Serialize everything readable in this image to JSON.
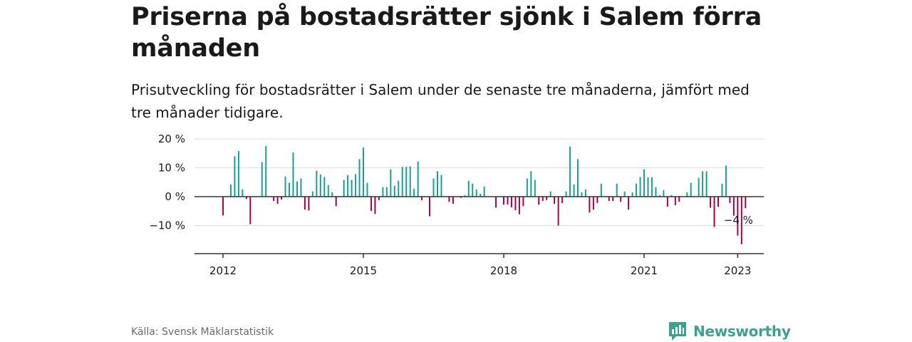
{
  "header": {
    "title": "Priserna på bostadsrätter sjönk i Salem förra månaden",
    "subtitle": "Prisutveckling för bostadsrätter i Salem under de senaste tre månaderna, jämfört med tre månader tidigare."
  },
  "footer": {
    "source": "Källa: Svensk Mäklarstatistik",
    "brand": "Newsworthy"
  },
  "colors": {
    "positive": "#1a9e96",
    "negative": "#a3004f",
    "brand": "#3e9f93",
    "grid": "#d9d9d9",
    "axis": "#333333"
  },
  "chart_data": {
    "type": "bar",
    "y_ticks": [
      {
        "value": 20,
        "label": "20 %"
      },
      {
        "value": 10,
        "label": "10 %"
      },
      {
        "value": 0,
        "label": "0 %"
      },
      {
        "value": -10,
        "label": "−10 %"
      }
    ],
    "x_ticks": [
      {
        "value": 2012,
        "label": "2012"
      },
      {
        "value": 2015,
        "label": "2015"
      },
      {
        "value": 2018,
        "label": "2018"
      },
      {
        "value": 2021,
        "label": "2021"
      },
      {
        "value": 2023,
        "label": "2023"
      }
    ],
    "ylim": [
      -19,
      20
    ],
    "xlim": [
      2011.4,
      2023.6
    ],
    "grid": true,
    "annotation": {
      "label": "−4 %",
      "x": 2023.0,
      "y": -4
    },
    "series": [
      {
        "start": 2012.0,
        "values": [
          -6.5,
          0,
          4.2,
          14,
          15.8,
          2.5,
          -0.8,
          -9.5,
          0,
          0,
          12,
          17.5,
          0,
          -1.5,
          -2.5,
          -1,
          7,
          4.8,
          15.3,
          5.3,
          6.3,
          -4.5,
          -4.8,
          1.8,
          9,
          7.7,
          6.8,
          4,
          1.5,
          -3.3,
          0,
          5.8,
          7.5,
          5.8,
          7.8,
          13,
          17,
          4.8,
          -5,
          -6,
          -1.2,
          3.3,
          3.3,
          9.5,
          3.8,
          5.5,
          10.3,
          10.3,
          10.5,
          2.7,
          12.2,
          -1.2,
          0,
          -6.8,
          6.3,
          8.8,
          7.5,
          0,
          -1.8,
          -2.5,
          0,
          -0.4,
          0.5,
          5.5,
          4.5,
          2.5,
          1,
          3.5,
          0,
          0,
          -3.8,
          0,
          -2.8,
          -2.7,
          -3.7,
          -4.7,
          -6.1,
          -3.3,
          6.3,
          8.8,
          5.8,
          -2.8,
          -1.5,
          -1.2,
          1.8,
          -2.5,
          -10,
          -2.2,
          1.8,
          17.3,
          4.2,
          13,
          1.5,
          2.5,
          -5.5,
          -4.5,
          -2.2,
          4.5,
          0,
          -1.5,
          -1.5,
          4.5,
          -1.8,
          1.8,
          -4.5,
          1.5,
          4.5,
          6.8,
          9.5,
          6.7,
          6.7,
          3.3,
          0.5,
          2.3,
          -3.5,
          0.5,
          -3,
          -1.8,
          0,
          1.5,
          4.8,
          0,
          6.5,
          8.8,
          8.8,
          -3.8,
          -10.5,
          -3.5,
          4.5,
          10.8,
          -2.2,
          -6.6,
          -13.5,
          -16.5,
          -4
        ]
      }
    ]
  }
}
